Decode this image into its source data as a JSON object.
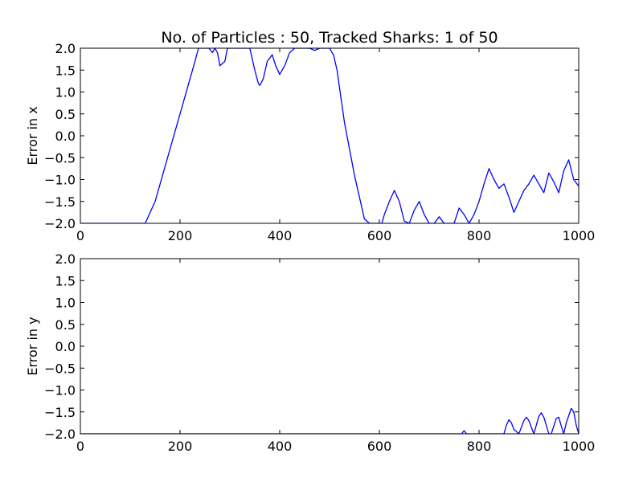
{
  "figure": {
    "title": "No. of Particles : 50, Tracked Sharks: 1 of 50"
  },
  "chart_data": [
    {
      "type": "line",
      "ylabel": "Error in x",
      "xlim": [
        0,
        1000
      ],
      "ylim": [
        -2.0,
        2.0
      ],
      "xticks": [
        0,
        200,
        400,
        600,
        800,
        1000
      ],
      "yticks": [
        2.0,
        1.5,
        1.0,
        0.5,
        0.0,
        -0.5,
        -1.0,
        -1.5,
        -2.0
      ],
      "grid": false,
      "line_color": "#0000ff",
      "series": [
        {
          "x": [
            0,
            130,
            150,
            170,
            190,
            210,
            230,
            237,
            250,
            258,
            265,
            270,
            275,
            280,
            290,
            295,
            330,
            340,
            350,
            357,
            360,
            367,
            375,
            385,
            392,
            400,
            410,
            420,
            430,
            440,
            450,
            460,
            470,
            480,
            490,
            500,
            505,
            508,
            515,
            520,
            525,
            530,
            540,
            550,
            560,
            570,
            580,
            590,
            600,
            605,
            610,
            620,
            630,
            640,
            650,
            660,
            670,
            680,
            690,
            700,
            710,
            720,
            730,
            740,
            750,
            760,
            770,
            780,
            790,
            800,
            810,
            820,
            830,
            840,
            850,
            860,
            870,
            880,
            890,
            900,
            910,
            920,
            930,
            940,
            950,
            960,
            970,
            980,
            990,
            1000
          ],
          "y": [
            -2.0,
            -2.0,
            -1.5,
            -0.7,
            0.1,
            0.9,
            1.7,
            2.0,
            2.0,
            2.0,
            1.9,
            2.0,
            1.9,
            1.6,
            1.7,
            2.0,
            2.0,
            2.0,
            1.5,
            1.2,
            1.15,
            1.3,
            1.7,
            1.85,
            1.6,
            1.4,
            1.6,
            1.9,
            2.0,
            2.0,
            2.0,
            2.0,
            1.95,
            2.0,
            2.0,
            2.0,
            1.9,
            1.85,
            1.5,
            1.1,
            0.7,
            0.3,
            -0.3,
            -0.9,
            -1.4,
            -1.9,
            -2.0,
            -2.0,
            -2.0,
            -2.0,
            -1.8,
            -1.5,
            -1.25,
            -1.5,
            -1.95,
            -2.0,
            -1.7,
            -1.5,
            -1.8,
            -2.0,
            -2.0,
            -1.85,
            -2.0,
            -2.0,
            -2.0,
            -1.65,
            -1.8,
            -2.0,
            -1.8,
            -1.5,
            -1.1,
            -0.75,
            -1.0,
            -1.2,
            -1.1,
            -1.4,
            -1.75,
            -1.5,
            -1.25,
            -1.1,
            -0.9,
            -1.1,
            -1.3,
            -0.85,
            -1.05,
            -1.3,
            -0.8,
            -0.55,
            -1.0,
            -1.15
          ]
        }
      ]
    },
    {
      "type": "line",
      "ylabel": "Error in y",
      "xlim": [
        0,
        1000
      ],
      "ylim": [
        -2.0,
        2.0
      ],
      "xticks": [
        0,
        200,
        400,
        600,
        800,
        1000
      ],
      "yticks": [
        2.0,
        1.5,
        1.0,
        0.5,
        0.0,
        -0.5,
        -1.0,
        -1.5,
        -2.0
      ],
      "grid": false,
      "line_color": "#0000ff",
      "series": [
        {
          "x": [
            0,
            765,
            770,
            775,
            780,
            850,
            855,
            860,
            865,
            870,
            880,
            890,
            895,
            900,
            910,
            920,
            925,
            930,
            940,
            945,
            955,
            960,
            965,
            970,
            975,
            985,
            990,
            995,
            1000
          ],
          "y": [
            -2.0,
            -2.0,
            -1.93,
            -2.0,
            -2.0,
            -2.0,
            -1.8,
            -1.68,
            -1.75,
            -1.9,
            -2.0,
            -1.7,
            -1.62,
            -1.7,
            -2.0,
            -1.6,
            -1.52,
            -1.62,
            -2.0,
            -2.0,
            -1.65,
            -1.62,
            -1.82,
            -2.0,
            -1.75,
            -1.42,
            -1.5,
            -1.8,
            -2.0
          ]
        }
      ]
    }
  ]
}
